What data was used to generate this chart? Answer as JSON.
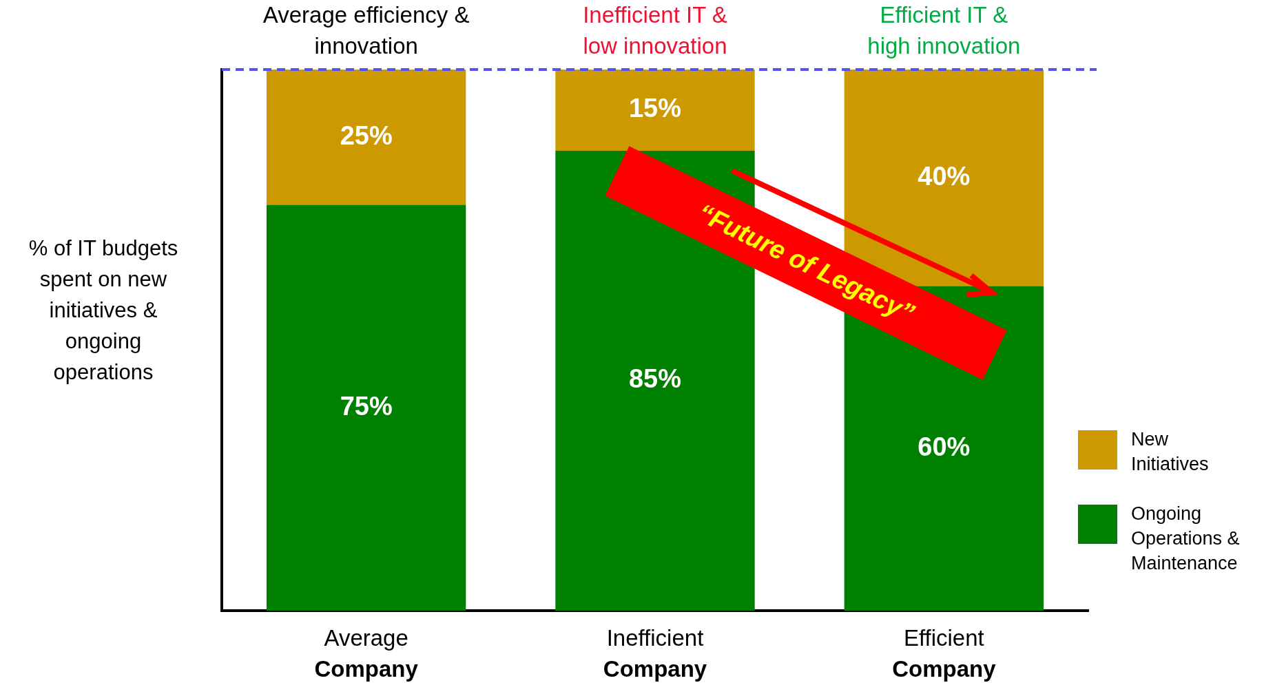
{
  "chart_data": {
    "type": "bar",
    "stacked": true,
    "categories": [
      "Average\nCompany",
      "Inefficient\nCompany",
      "Efficient\nCompany"
    ],
    "series": [
      {
        "name": "Ongoing\nOperations &\nMaintenance",
        "color": "#008000",
        "values": [
          75,
          85,
          60
        ],
        "value_labels": [
          "75%",
          "85%",
          "60%"
        ]
      },
      {
        "name": "New\nInitiatives",
        "color": "#cc9900",
        "values": [
          25,
          15,
          40
        ],
        "value_labels": [
          "25%",
          "15%",
          "40%"
        ]
      }
    ],
    "ylim": [
      0,
      100
    ],
    "tick_labels": "x",
    "grid": false,
    "legend": "right",
    "ylabel": "% of IT budgets spent on new initiatives & ongoing operations",
    "ref_lines": [
      {
        "axis": "y",
        "value": 100,
        "color": "#5555ee",
        "line_style": "dashed"
      }
    ],
    "annotations": [
      "Average efficiency &\ninnovation",
      "Inefficient IT &\nlow innovation",
      "Efficient IT &\nhigh innovation",
      "“Future of Legacy”"
    ]
  }
}
